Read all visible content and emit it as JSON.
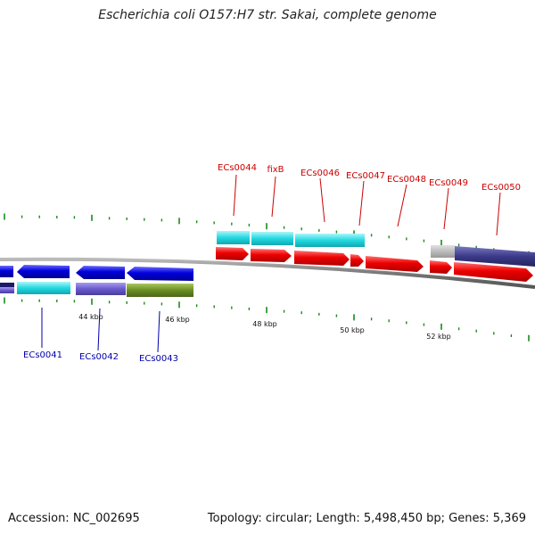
{
  "title": "Escherichia coli O157:H7 str. Sakai, complete genome",
  "accession": "Accession: NC_002695",
  "summary": "Topology: circular; Length: 5,498,450 bp; Genes: 5,369",
  "colors": {
    "forward_gene_label": "#cc0000",
    "reverse_gene_label": "#0000aa",
    "tick": "#1a8a1a",
    "backbone": "#777777",
    "red": "#ee0000",
    "blue": "#0000dd",
    "cyan": "#22d8e0",
    "slate": "#6a5acd",
    "olive": "#6b8e23",
    "navy": "#3a3a8a",
    "gray": "#bbbbbb"
  },
  "scale_labels": [
    "44 kbp",
    "46 kbp",
    "48 kbp",
    "50 kbp",
    "52 kbp"
  ],
  "forward_genes": [
    "ECs0044",
    "fixB",
    "ECs0046",
    "ECs0047",
    "ECs0048",
    "ECs0049",
    "ECs0050"
  ],
  "reverse_genes": [
    "ECs0041",
    "ECs0042",
    "ECs0043"
  ]
}
